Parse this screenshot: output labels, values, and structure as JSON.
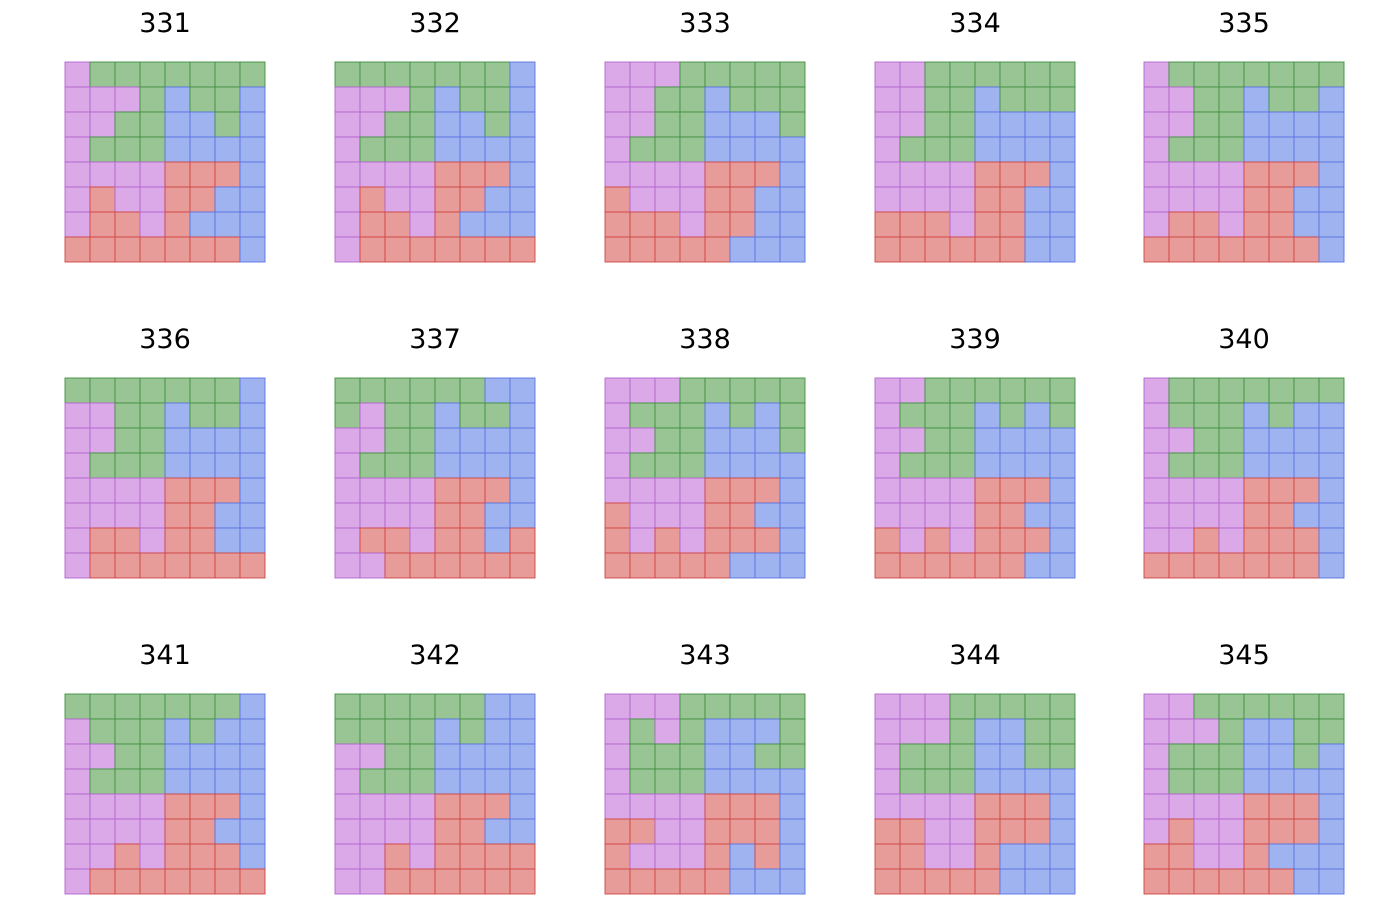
{
  "colors": {
    "P": {
      "fill": "#dba8e8",
      "stroke": "#b266cc"
    },
    "G": {
      "fill": "#99c594",
      "stroke": "#3f8f3f"
    },
    "B": {
      "fill": "#9fb3f0",
      "stroke": "#5a73e0"
    },
    "R": {
      "fill": "#e89c99",
      "stroke": "#cf4444"
    }
  },
  "panels": [
    {
      "title": "331",
      "rows": [
        "PGGGGGGG",
        "PPPGBGGB",
        "PPGGBBGB",
        "PGGGBBBB",
        "PPPPRRRB",
        "PRPPRRBB",
        "PRRPRBBB",
        "RRRRRRRB"
      ]
    },
    {
      "title": "332",
      "rows": [
        "GGGGGGGB",
        "PPPGBGGB",
        "PPGGBBGB",
        "PGGGBBBB",
        "PPPPRRRB",
        "PRPPRRBB",
        "PRRPRBBB",
        "PRRRRRRR"
      ]
    },
    {
      "title": "333",
      "rows": [
        "PPPGGGGG",
        "PPGGBGGG",
        "PPGGBBBG",
        "PGGGBBBB",
        "PPPPRRRB",
        "RPPPRRBB",
        "RRRPRRBB",
        "RRRRRBBB"
      ]
    },
    {
      "title": "334",
      "rows": [
        "PPGGGGGG",
        "PPGGBGGG",
        "PPGGBBBB",
        "PGGGBBBB",
        "PPPPRRRB",
        "PPPPRRBB",
        "RRRPRRBB",
        "RRRRRRBB"
      ]
    },
    {
      "title": "335",
      "rows": [
        "PGGGGGGG",
        "PPGGBGGB",
        "PPGGBBBB",
        "PGGGBBBB",
        "PPPPRRRB",
        "PPPPRRBB",
        "PRRPRRBB",
        "RRRRRRRB"
      ]
    },
    {
      "title": "336",
      "rows": [
        "GGGGGGGB",
        "PPGGBGGB",
        "PPGGBBBB",
        "PGGGBBBB",
        "PPPPRRRB",
        "PPPPRRBB",
        "PRRPRRBB",
        "PRRRRRRR"
      ]
    },
    {
      "title": "337",
      "rows": [
        "GGGGGGBB",
        "GPGGBGGB",
        "PPGGBBBB",
        "PGGGBBBB",
        "PPPPRRRB",
        "PPPPRRBB",
        "PRRPRRBR",
        "PPRRRRRR"
      ]
    },
    {
      "title": "338",
      "rows": [
        "PPPGGGGG",
        "PGGGBGBG",
        "PPGGBBBG",
        "PGGGBBBB",
        "PPPPRRRB",
        "RPPPRRBB",
        "RPRPRRRB",
        "RRRRRBBB"
      ]
    },
    {
      "title": "339",
      "rows": [
        "PPGGGGGG",
        "PGGGBGBG",
        "PPGGBBBB",
        "PGGGBBBB",
        "PPPPRRRB",
        "PPPPRRBB",
        "RPRPRRRB",
        "RRRRRRBB"
      ]
    },
    {
      "title": "340",
      "rows": [
        "PGGGGGGG",
        "PGGGBGBB",
        "PPGGBBBB",
        "PGGGBBBB",
        "PPPPRRRB",
        "PPPPRRBB",
        "PPRPRRRB",
        "RRRRRRRB"
      ]
    },
    {
      "title": "341",
      "rows": [
        "GGGGGGGB",
        "PGGGBGBB",
        "PPGGBBBB",
        "PGGGBBBB",
        "PPPPRRRB",
        "PPPPRRBB",
        "PPRPRRRB",
        "PRRRRRRR"
      ]
    },
    {
      "title": "342",
      "rows": [
        "GGGGGGBB",
        "GGGGBGBB",
        "PPGGBBBB",
        "PGGGBBBB",
        "PPPPRRRB",
        "PPPPRRBB",
        "PPRPRRRR",
        "PPRRRRRR"
      ]
    },
    {
      "title": "343",
      "rows": [
        "PPPGGGGG",
        "PGPGBBBG",
        "PGGGBBGG",
        "PGGGBBBB",
        "PPPPRRRB",
        "RRPPRRRB",
        "RPPPRBRB",
        "RRRRRBBB"
      ]
    },
    {
      "title": "344",
      "rows": [
        "PPPGGGGG",
        "PPPGBBGG",
        "PGGGBBGG",
        "PGGGBBBB",
        "PPPPRRRB",
        "RRPPRRRB",
        "RRPPRBBB",
        "RRRRRBBB"
      ]
    },
    {
      "title": "345",
      "rows": [
        "PPGGGGGG",
        "PPPGBBGG",
        "PGGGBBGB",
        "PGGGBBBB",
        "PPPPRRRB",
        "PRPPRRRB",
        "RRPPRBBB",
        "RRRRRRBB"
      ]
    }
  ]
}
